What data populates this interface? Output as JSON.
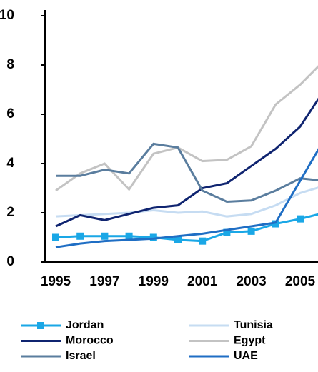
{
  "chart_data": {
    "type": "line",
    "categories": [
      "1995",
      null,
      "1997",
      null,
      "1999",
      null,
      "2001",
      null,
      "2003",
      null,
      "2005",
      null
    ],
    "ylim": [
      0,
      10
    ],
    "yticks": [
      0,
      2,
      4,
      6,
      8,
      10
    ],
    "series": [
      {
        "name": "Jordan",
        "color": "#1aa7e6",
        "marker": "square",
        "values": [
          1.0,
          1.05,
          1.05,
          1.05,
          1.0,
          0.9,
          0.85,
          1.2,
          1.25,
          1.55,
          1.75,
          2.0
        ]
      },
      {
        "name": "Tunisia",
        "color": "#c6dcf2",
        "values": [
          1.85,
          1.9,
          1.95,
          2.0,
          2.1,
          2.0,
          2.05,
          1.85,
          1.95,
          2.3,
          2.8,
          3.1
        ]
      },
      {
        "name": "Morocco",
        "color": "#0f2470",
        "values": [
          1.45,
          1.9,
          1.7,
          1.95,
          2.2,
          2.3,
          3.0,
          3.2,
          3.9,
          4.6,
          5.5,
          7.0
        ]
      },
      {
        "name": "Egypt",
        "color": "#c3c3c3",
        "values": [
          2.9,
          3.6,
          4.0,
          2.95,
          4.4,
          4.65,
          4.1,
          4.15,
          4.7,
          6.4,
          7.2,
          8.2
        ]
      },
      {
        "name": "Israel",
        "color": "#5a7d9e",
        "values": [
          3.5,
          3.5,
          3.75,
          3.6,
          4.8,
          4.65,
          2.9,
          2.45,
          2.5,
          2.9,
          3.4,
          3.3
        ]
      },
      {
        "name": "UAE",
        "color": "#1f6ec4",
        "values": [
          0.6,
          0.75,
          0.85,
          0.9,
          0.95,
          1.05,
          1.15,
          1.3,
          1.45,
          1.6,
          3.3,
          5.0
        ]
      }
    ]
  }
}
